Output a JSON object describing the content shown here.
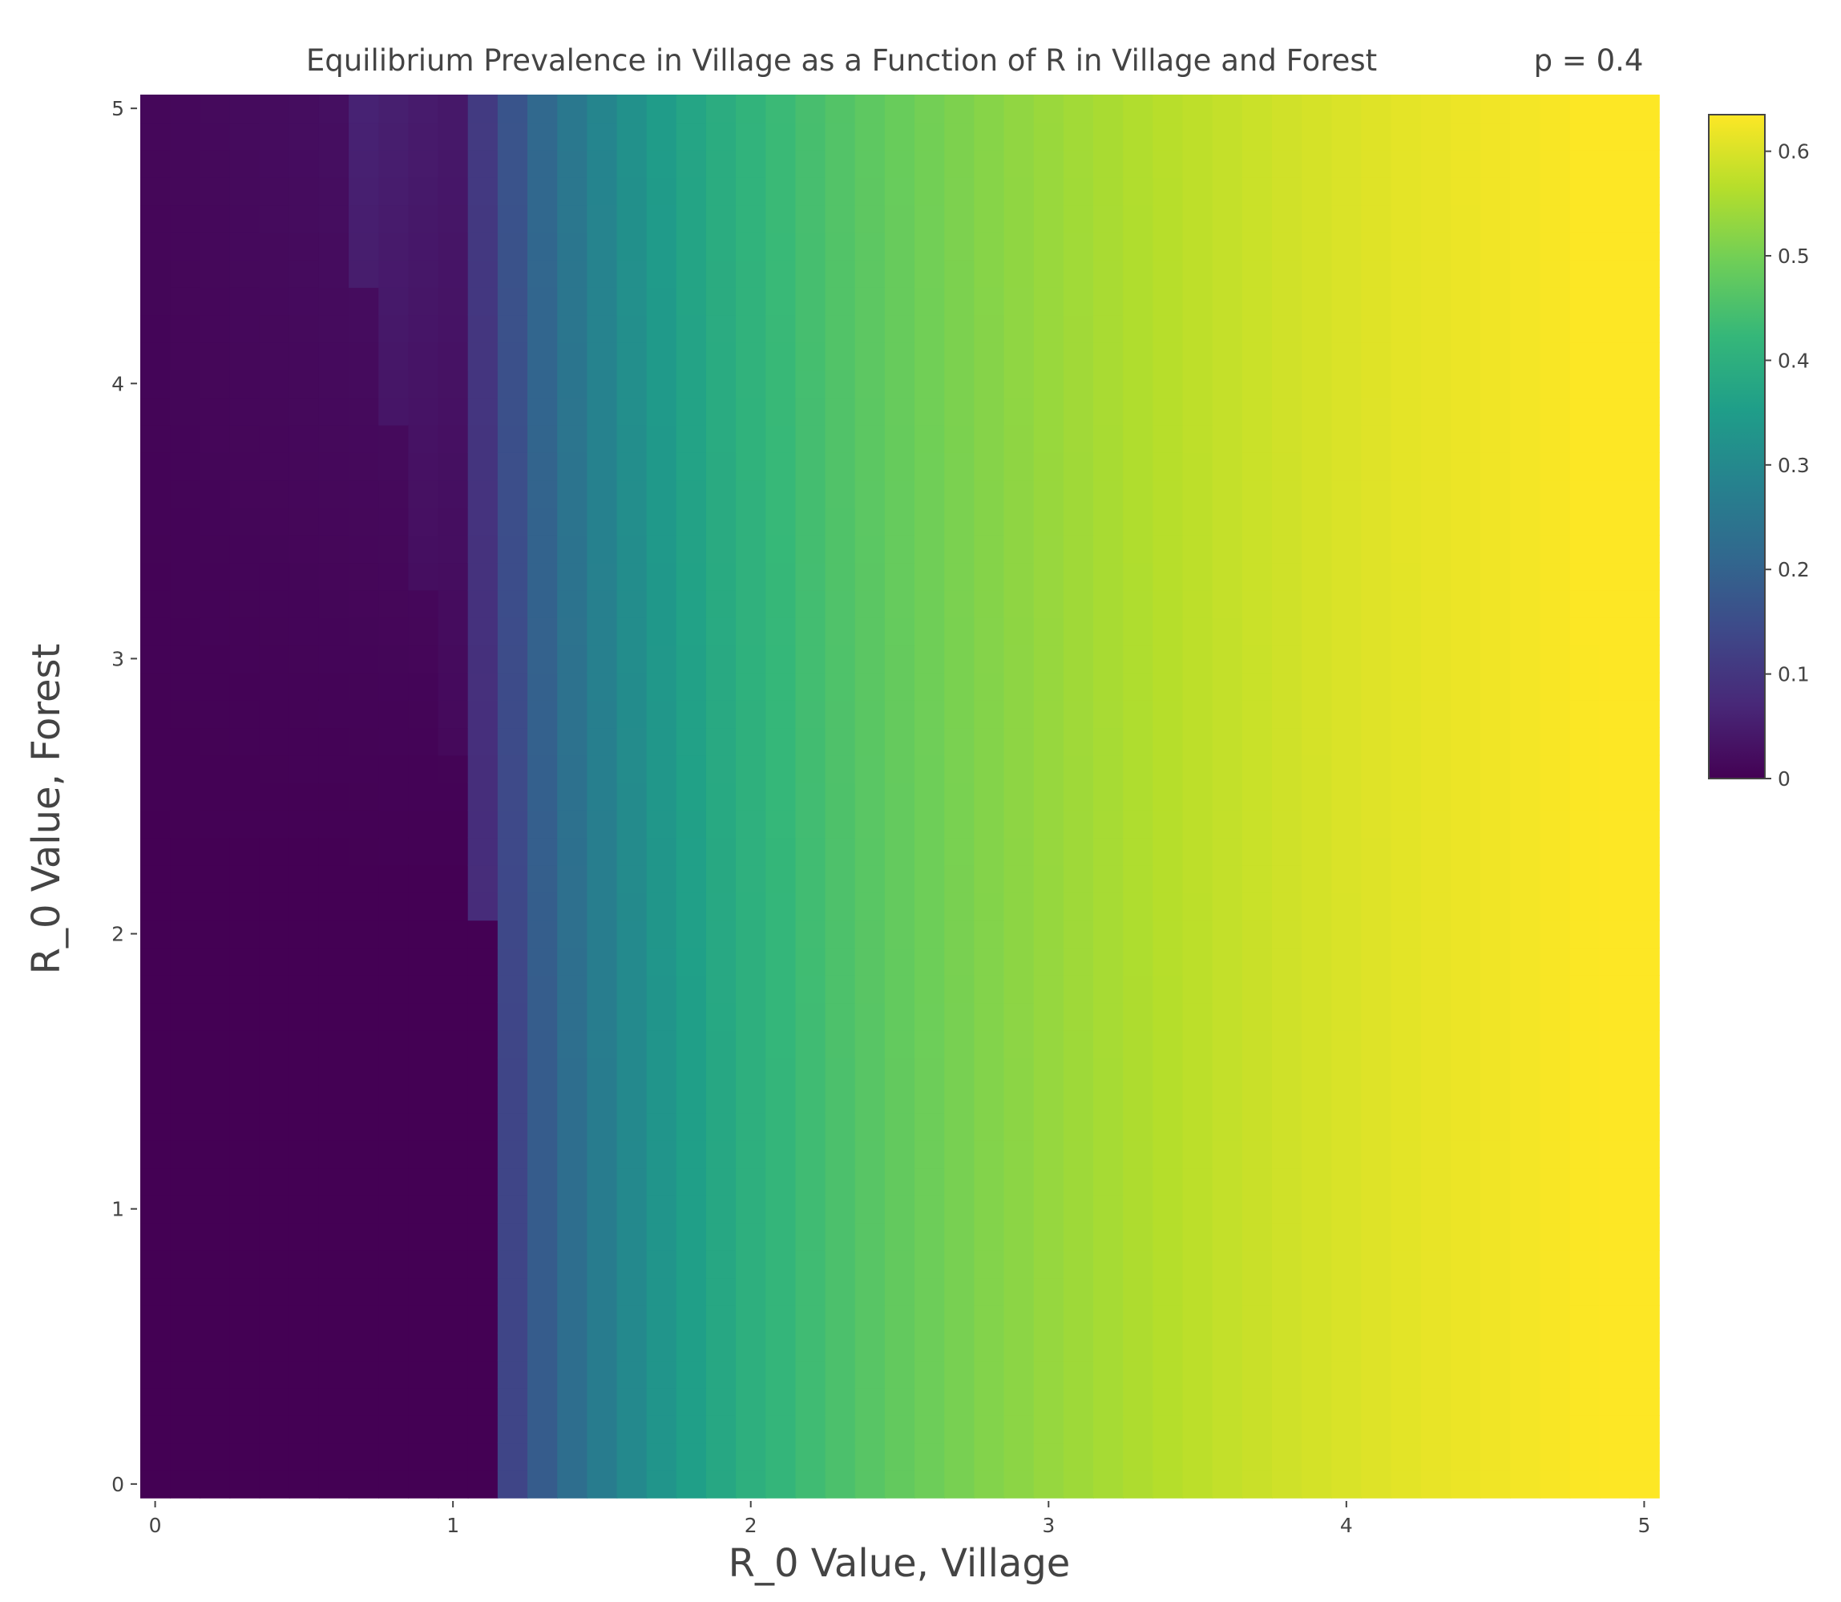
{
  "chart_data": {
    "type": "heatmap",
    "title": "Equilibrium Prevalence in Village as a Function of R in Village and Forest",
    "subtitle": "p = 0.4",
    "xlabel": "R_0 Value, Village",
    "ylabel": "R_0 Value, Forest",
    "xlim": [
      -0.05,
      5.05
    ],
    "ylim": [
      -0.05,
      5.05
    ],
    "x_ticks": [
      "0",
      "1",
      "2",
      "3",
      "4",
      "5"
    ],
    "y_ticks": [
      "0",
      "1",
      "2",
      "3",
      "4",
      "5"
    ],
    "grid": {
      "x_start": 0,
      "x_step": 0.1,
      "nx": 51,
      "y_start": 0,
      "y_step": 0.1,
      "ny": 51
    },
    "z_formula": "per-cell z computed by script: village prevalence rises from 0 (R_0 village <= 1.1 at low forest R_0) to about 0.63 at R_0 village = 5; higher forest R_0 adds a small amount of prevalence at low village R_0",
    "colorscale": "Viridis",
    "colorscale_stops": [
      "#440154",
      "#482878",
      "#3e4989",
      "#31688e",
      "#26828e",
      "#1f9e89",
      "#35b779",
      "#6ece58",
      "#b5de2b",
      "#fde725"
    ],
    "colorbar": {
      "zmin": 0,
      "zmax": 0.635,
      "ticks": [
        "0",
        "0.1",
        "0.2",
        "0.3",
        "0.4",
        "0.5",
        "0.6"
      ],
      "tick_values": [
        0,
        0.1,
        0.2,
        0.3,
        0.4,
        0.5,
        0.6
      ]
    }
  }
}
